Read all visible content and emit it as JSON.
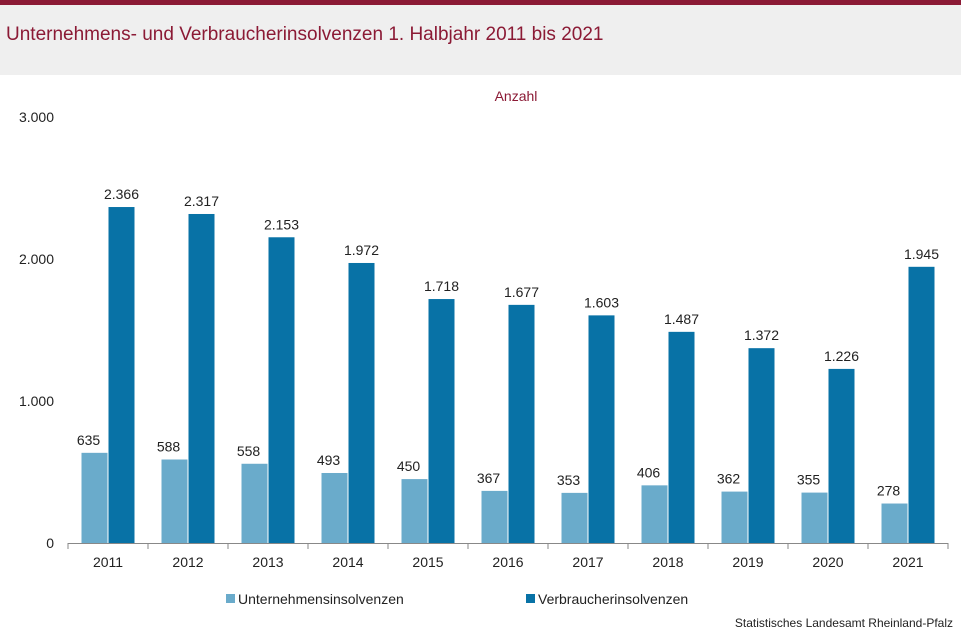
{
  "title": "Unternehmens- und Verbraucherinsolvenzen 1. Halbjahr 2011 bis 2021",
  "source": "Statistisches Landesamt Rheinland-Pfalz",
  "colors": {
    "accent": "#8b1a35",
    "series1": "#6aabcb",
    "series2": "#0872a6",
    "background": "#efefef"
  },
  "chart_data": {
    "type": "bar",
    "ylabel": "Anzahl",
    "ylim": [
      0,
      3000
    ],
    "yticks": [
      0,
      1000,
      2000,
      3000
    ],
    "ytick_labels": [
      "0",
      "1.000",
      "2.000",
      "3.000"
    ],
    "grid": false,
    "legend_position": "bottom",
    "categories": [
      "2011",
      "2012",
      "2013",
      "2014",
      "2015",
      "2016",
      "2017",
      "2018",
      "2019",
      "2020",
      "2021"
    ],
    "series": [
      {
        "name": "Unternehmensinsolvenzen",
        "color": "#6aabcb",
        "values": [
          635,
          588,
          558,
          493,
          450,
          367,
          353,
          406,
          362,
          355,
          278
        ],
        "labels": [
          "635",
          "588",
          "558",
          "493",
          "450",
          "367",
          "353",
          "406",
          "362",
          "355",
          "278"
        ]
      },
      {
        "name": "Verbraucherinsolvenzen",
        "color": "#0872a6",
        "values": [
          2366,
          2317,
          2153,
          1972,
          1718,
          1677,
          1603,
          1487,
          1372,
          1226,
          1945
        ],
        "labels": [
          "2.366",
          "2.317",
          "2.153",
          "1.972",
          "1.718",
          "1.677",
          "1.603",
          "1.487",
          "1.372",
          "1.226",
          "1.945"
        ]
      }
    ]
  }
}
